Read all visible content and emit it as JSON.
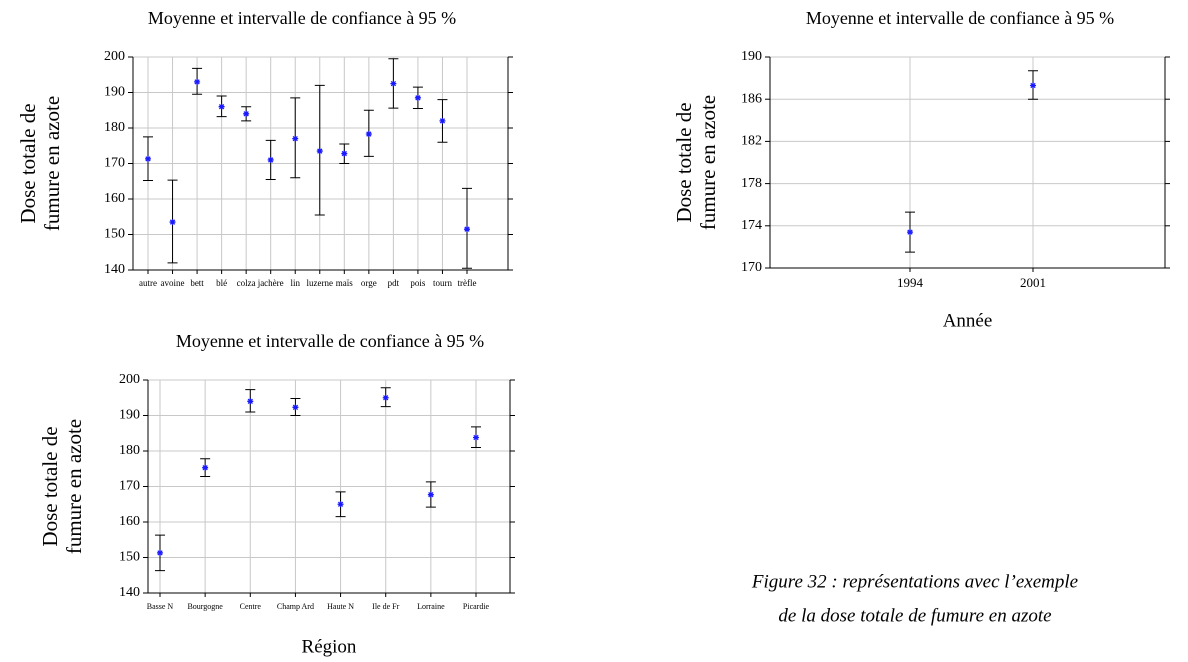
{
  "chart_data": [
    {
      "type": "errorbar",
      "title": "Moyenne et intervalle de confiance à 95 %",
      "ylabel": [
        "Dose totale de",
        "fumure en azote"
      ],
      "categories": [
        "autre",
        "avoine",
        "bett",
        "blé",
        "colza",
        "jachère",
        "lin",
        "luzerne",
        "maïs",
        "orge",
        "pdt",
        "pois",
        "tourn",
        "trèfle"
      ],
      "values": [
        171.3,
        153.5,
        193,
        186,
        184,
        171,
        177,
        173.5,
        172.8,
        178.3,
        192.5,
        188.5,
        182,
        151.5
      ],
      "lower": [
        165.2,
        142,
        189.5,
        183.2,
        182,
        165.5,
        166,
        155.5,
        170,
        172,
        185.6,
        185.5,
        176,
        140.5
      ],
      "upper": [
        177.5,
        165.3,
        196.8,
        189,
        186,
        176.5,
        188.5,
        192,
        175.5,
        185,
        199.5,
        191.5,
        188,
        163
      ],
      "ylim": [
        140,
        200
      ],
      "yticks": [
        140,
        150,
        160,
        170,
        180,
        190,
        200
      ],
      "grid": true,
      "color": "#1a1aff"
    },
    {
      "type": "errorbar",
      "title": "Moyenne et intervalle de confiance à 95 %",
      "ylabel": [
        "Dose totale de",
        "fumure en azote"
      ],
      "xlabel": "Année",
      "categories": [
        "1994",
        "2001"
      ],
      "values": [
        173.4,
        187.3
      ],
      "lower": [
        171.5,
        186
      ],
      "upper": [
        175.3,
        188.7
      ],
      "ylim": [
        170,
        190
      ],
      "yticks": [
        170,
        174,
        178,
        182,
        186,
        190
      ],
      "grid": true,
      "color": "#1a1aff"
    },
    {
      "type": "errorbar",
      "title": "Moyenne et intervalle de confiance à 95 %",
      "ylabel": [
        "Dose totale de",
        "fumure en azote"
      ],
      "xlabel": "Région",
      "categories": [
        "Basse N",
        "Bourgogne",
        "Centre",
        "Champ Ard",
        "Haute N",
        "Ile de Fr",
        "Lorraine",
        "Picardie"
      ],
      "values": [
        151.3,
        175.3,
        194,
        192.3,
        165,
        195,
        167.7,
        183.8
      ],
      "lower": [
        146.3,
        172.8,
        191,
        190,
        161.5,
        192.5,
        164.2,
        181
      ],
      "upper": [
        156.3,
        177.8,
        197.3,
        194.8,
        168.5,
        197.8,
        171.3,
        186.8
      ],
      "ylim": [
        140,
        200
      ],
      "yticks": [
        140,
        150,
        160,
        170,
        180,
        190,
        200
      ],
      "grid": true,
      "color": "#1a1aff"
    }
  ],
  "caption": [
    "Figure 32 : représentations avec l’exemple",
    "de la dose totale de fumure en azote"
  ]
}
